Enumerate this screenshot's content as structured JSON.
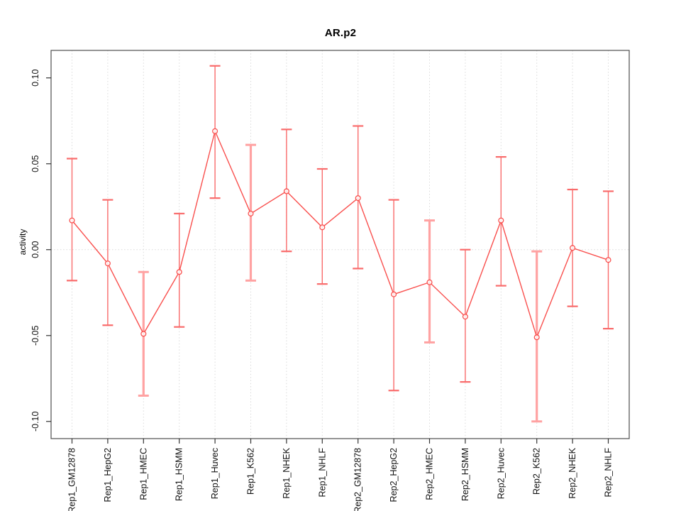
{
  "chart_data": {
    "type": "line",
    "title": "AR.p2",
    "ylabel": "activity",
    "xlabel": "",
    "legend_position": "none",
    "categories": [
      "Rep1_GM12878",
      "Rep1_HepG2",
      "Rep1_HMEC",
      "Rep1_HSMM",
      "Rep1_Huvec",
      "Rep1_K562",
      "Rep1_NHEK",
      "Rep1_NHLF",
      "Rep2_GM12878",
      "Rep2_HepG2",
      "Rep2_HMEC",
      "Rep2_HSMM",
      "Rep2_Huvec",
      "Rep2_K562",
      "Rep2_NHEK",
      "Rep2_NHLF"
    ],
    "values": [
      0.017,
      -0.008,
      -0.049,
      -0.013,
      0.069,
      0.021,
      0.034,
      0.013,
      0.03,
      -0.026,
      -0.019,
      -0.039,
      0.017,
      -0.051,
      0.001,
      -0.006
    ],
    "error_high": [
      0.053,
      0.029,
      -0.013,
      0.021,
      0.107,
      0.061,
      0.07,
      0.047,
      0.072,
      0.029,
      0.017,
      0.0,
      0.054,
      -0.001,
      0.035,
      0.034
    ],
    "error_low": [
      -0.018,
      -0.044,
      -0.085,
      -0.045,
      0.03,
      -0.018,
      -0.001,
      -0.02,
      -0.011,
      -0.082,
      -0.054,
      -0.077,
      -0.021,
      -0.1,
      -0.033,
      -0.046
    ],
    "emphasized_bar_indices": [
      2,
      5,
      10,
      13
    ],
    "ytick_labels": [
      "0.10",
      "0.05",
      "0.00",
      "-0.05",
      "-0.10"
    ],
    "ytick_values": [
      0.1,
      0.05,
      0.0,
      -0.05,
      -0.1
    ],
    "ylim": [
      -0.11,
      0.116
    ],
    "grid": {
      "vertical_dotted_per_category": true,
      "horizontal_zero_line_dotted": true
    },
    "colors": {
      "line": "#F9504E",
      "point_stroke": "#F9504E",
      "error_bar": "#F96B6B",
      "error_bar_emphasized": "#FFA2A2",
      "gridline": "#DADADA",
      "axis_box": "#4D4D4D",
      "tick": "#333333",
      "text": "#111111"
    }
  }
}
